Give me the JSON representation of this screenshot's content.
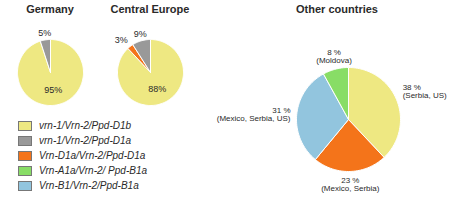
{
  "chart_data": [
    {
      "type": "pie",
      "title": "Germany",
      "values": [
        95,
        5
      ],
      "value_labels": [
        "95%",
        "5%"
      ],
      "colors": [
        "#EEE882",
        "#999999"
      ],
      "data_labels": true
    },
    {
      "type": "pie",
      "title": "Central Europe",
      "values": [
        88,
        3,
        9
      ],
      "value_labels": [
        "88%",
        "3%",
        "9%"
      ],
      "colors": [
        "#EEE882",
        "#F4741A",
        "#999999"
      ],
      "data_labels": true
    },
    {
      "type": "pie",
      "title": "Other countries",
      "values": [
        38,
        23,
        31,
        8
      ],
      "value_labels": [
        "38 %\n(Serbia, US)",
        "23 %\n(Mexico, Serbia)",
        "31 %\n(Mexico, Serbia, US)",
        "8 %\n(Moldova)"
      ],
      "colors": [
        "#EEE882",
        "#F4741A",
        "#92C5DE",
        "#88DD66"
      ],
      "data_labels": true
    },
    {
      "type": "legend",
      "series": [
        {
          "name": "vrn-1/Vrn-2/Ppd-D1b",
          "color": "#EEE882"
        },
        {
          "name": "vrn-1/Vrn-2/Ppd-D1a",
          "color": "#999999"
        },
        {
          "name": "Vrn-D1a/Vrn-2/Ppd-D1a",
          "color": "#F4741A"
        },
        {
          "name": "Vrn-A1a/Vrn-2/ Ppd-B1a",
          "color": "#88DD66"
        },
        {
          "name": "Vrn-B1/Vrn-2/Ppd-B1a",
          "color": "#92C5DE"
        }
      ]
    }
  ]
}
